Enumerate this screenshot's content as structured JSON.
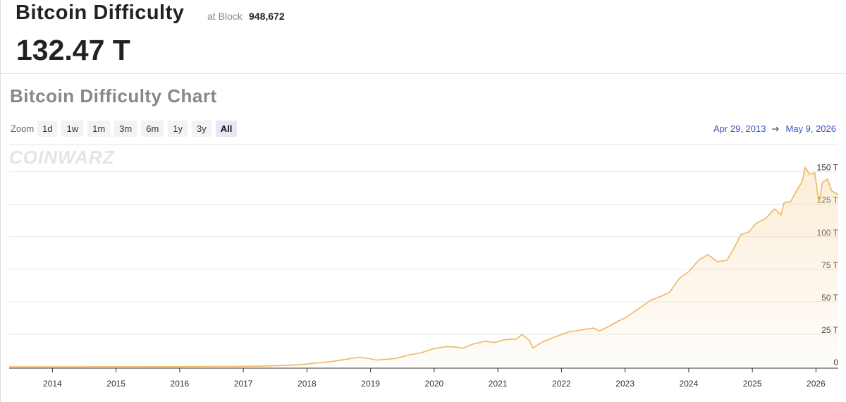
{
  "header": {
    "title": "Bitcoin Difficulty",
    "at_label": "at Block",
    "block": "948,672",
    "value": "132.47 T"
  },
  "chart_section": {
    "title": "Bitcoin Difficulty Chart",
    "zoom_label": "Zoom",
    "zoom_buttons": [
      "1d",
      "1w",
      "1m",
      "3m",
      "6m",
      "1y",
      "3y",
      "All"
    ],
    "selected": "All",
    "date_from": "Apr 29, 2013",
    "date_to": "May 9, 2026",
    "watermark": "COINWARZ"
  },
  "chart_data": {
    "type": "line",
    "color": "#f0b660",
    "grid": true,
    "x": [
      2013.32,
      2013.6,
      2014,
      2014.5,
      2015,
      2015.5,
      2016,
      2016.5,
      2017,
      2017.3,
      2017.6,
      2017.9,
      2018.1,
      2018.4,
      2018.6,
      2018.8,
      2018.95,
      2019.1,
      2019.4,
      2019.6,
      2019.8,
      2020,
      2020.2,
      2020.35,
      2020.45,
      2020.6,
      2020.8,
      2020.95,
      2021.1,
      2021.3,
      2021.38,
      2021.5,
      2021.55,
      2021.7,
      2021.9,
      2022.1,
      2022.3,
      2022.5,
      2022.6,
      2022.75,
      2022.9,
      2023.0,
      2023.2,
      2023.4,
      2023.55,
      2023.7,
      2023.85,
      2024.0,
      2024.15,
      2024.3,
      2024.45,
      2024.6,
      2024.72,
      2024.82,
      2024.95,
      2025.05,
      2025.2,
      2025.35,
      2025.45,
      2025.5,
      2025.6,
      2025.7,
      2025.78,
      2025.83,
      2025.9,
      2025.98,
      2026.05,
      2026.1,
      2026.18,
      2026.25,
      2026.35
    ],
    "values": [
      1e-05,
      3e-05,
      0.0015,
      0.02,
      0.04,
      0.05,
      0.1,
      0.2,
      0.3,
      0.5,
      0.9,
      1.6,
      2.6,
      4.1,
      5.6,
      7.2,
      6.5,
      5.1,
      6.4,
      9.0,
      10.8,
      14.0,
      15.5,
      15.1,
      14.2,
      17.3,
      19.6,
      18.6,
      20.8,
      21.4,
      25.0,
      19.9,
      14.4,
      19.0,
      23.0,
      26.6,
      28.2,
      29.8,
      27.5,
      31.2,
      35.3,
      37.6,
      44.2,
      51.2,
      53.9,
      57.3,
      67.9,
      73.2,
      81.7,
      86.4,
      80.9,
      82.0,
      92.0,
      101.6,
      103.9,
      110.1,
      113.8,
      121.5,
      116.9,
      126.4,
      126.9,
      136.0,
      142.3,
      153.4,
      148.2,
      149.3,
      125.9,
      141.7,
      144.4,
      135.3,
      132.47
    ],
    "xlim": [
      2013.32,
      2026.35
    ],
    "xticks": [
      2014,
      2015,
      2016,
      2017,
      2018,
      2019,
      2020,
      2021,
      2022,
      2023,
      2024,
      2025,
      2026
    ],
    "ylim": [
      0,
      171
    ],
    "yticks": [
      0,
      {
        "value": 25,
        "label": "25 T"
      },
      {
        "value": 50,
        "label": "50 T"
      },
      {
        "value": 75,
        "label": "75 T"
      },
      {
        "value": 100,
        "label": "100 T"
      },
      {
        "value": 125,
        "label": "125 T"
      },
      {
        "value": 150,
        "label": "150 T"
      }
    ]
  }
}
